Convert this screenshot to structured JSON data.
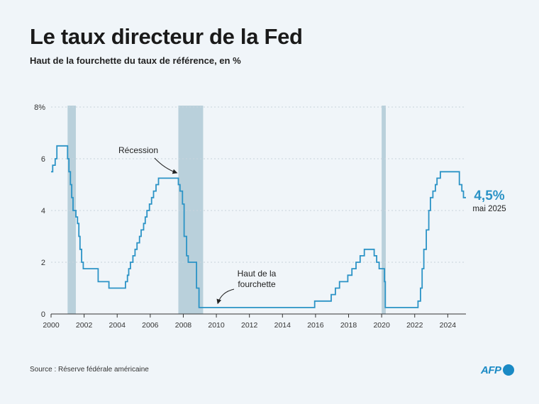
{
  "header": {
    "title": "Le taux directeur de la Fed",
    "subtitle": "Haut de la fourchette du taux de référence, en %"
  },
  "footer": {
    "source": "Source : Réserve fédérale américaine",
    "logo_text": "AFP"
  },
  "colors": {
    "line": "#2b93c6",
    "recession": "#b9d0db",
    "grid": "#c9d3dc",
    "accent": "#2b93c6"
  },
  "chart_data": {
    "type": "line",
    "title": "Le taux directeur de la Fed",
    "subtitle": "Haut de la fourchette du taux de référence, en %",
    "xlabel": "",
    "ylabel": "",
    "xlim": [
      2000,
      2025.1
    ],
    "ylim": [
      0,
      8
    ],
    "grid": true,
    "y_ticks": [
      {
        "value": 0,
        "label": "0"
      },
      {
        "value": 2,
        "label": "2"
      },
      {
        "value": 4,
        "label": "4"
      },
      {
        "value": 6,
        "label": "6"
      },
      {
        "value": 8,
        "label": "8%"
      }
    ],
    "x_ticks": [
      {
        "value": 2000,
        "label": "2000"
      },
      {
        "value": 2002,
        "label": "2002"
      },
      {
        "value": 2004,
        "label": "2004"
      },
      {
        "value": 2006,
        "label": "2006"
      },
      {
        "value": 2008,
        "label": "2008"
      },
      {
        "value": 2010,
        "label": "2010"
      },
      {
        "value": 2012,
        "label": "2012"
      },
      {
        "value": 2014,
        "label": "2014"
      },
      {
        "value": 2016,
        "label": "2016"
      },
      {
        "value": 2018,
        "label": "2018"
      },
      {
        "value": 2020,
        "label": "2020"
      },
      {
        "value": 2022,
        "label": "2022"
      },
      {
        "value": 2024,
        "label": "2024"
      }
    ],
    "recessions": [
      {
        "start": 2001.0,
        "end": 2001.5
      },
      {
        "start": 2007.7,
        "end": 2009.2
      },
      {
        "start": 2020.0,
        "end": 2020.25
      }
    ],
    "series": [
      {
        "step": true,
        "points": [
          [
            2000.0,
            5.5
          ],
          [
            2000.1,
            5.75
          ],
          [
            2000.25,
            6.0
          ],
          [
            2000.35,
            6.5
          ],
          [
            2001.0,
            6.0
          ],
          [
            2001.08,
            5.5
          ],
          [
            2001.17,
            5.0
          ],
          [
            2001.25,
            4.5
          ],
          [
            2001.33,
            4.0
          ],
          [
            2001.5,
            3.75
          ],
          [
            2001.6,
            3.5
          ],
          [
            2001.68,
            3.0
          ],
          [
            2001.75,
            2.5
          ],
          [
            2001.85,
            2.0
          ],
          [
            2001.95,
            1.75
          ],
          [
            2002.85,
            1.25
          ],
          [
            2003.5,
            1.0
          ],
          [
            2004.5,
            1.25
          ],
          [
            2004.62,
            1.5
          ],
          [
            2004.7,
            1.75
          ],
          [
            2004.8,
            2.0
          ],
          [
            2004.95,
            2.25
          ],
          [
            2005.08,
            2.5
          ],
          [
            2005.2,
            2.75
          ],
          [
            2005.35,
            3.0
          ],
          [
            2005.45,
            3.25
          ],
          [
            2005.6,
            3.5
          ],
          [
            2005.7,
            3.75
          ],
          [
            2005.8,
            4.0
          ],
          [
            2005.95,
            4.25
          ],
          [
            2006.08,
            4.5
          ],
          [
            2006.2,
            4.75
          ],
          [
            2006.35,
            5.0
          ],
          [
            2006.5,
            5.25
          ],
          [
            2007.7,
            5.0
          ],
          [
            2007.8,
            4.75
          ],
          [
            2007.95,
            4.25
          ],
          [
            2008.05,
            3.0
          ],
          [
            2008.2,
            2.25
          ],
          [
            2008.3,
            2.0
          ],
          [
            2008.8,
            1.0
          ],
          [
            2008.95,
            0.25
          ],
          [
            2015.95,
            0.5
          ],
          [
            2016.95,
            0.75
          ],
          [
            2017.2,
            1.0
          ],
          [
            2017.45,
            1.25
          ],
          [
            2017.95,
            1.5
          ],
          [
            2018.2,
            1.75
          ],
          [
            2018.45,
            2.0
          ],
          [
            2018.7,
            2.25
          ],
          [
            2018.95,
            2.5
          ],
          [
            2019.55,
            2.25
          ],
          [
            2019.7,
            2.0
          ],
          [
            2019.85,
            1.75
          ],
          [
            2020.17,
            1.25
          ],
          [
            2020.22,
            0.25
          ],
          [
            2022.2,
            0.5
          ],
          [
            2022.35,
            1.0
          ],
          [
            2022.45,
            1.75
          ],
          [
            2022.55,
            2.5
          ],
          [
            2022.7,
            3.25
          ],
          [
            2022.85,
            4.0
          ],
          [
            2022.95,
            4.5
          ],
          [
            2023.1,
            4.75
          ],
          [
            2023.25,
            5.0
          ],
          [
            2023.35,
            5.25
          ],
          [
            2023.55,
            5.5
          ],
          [
            2024.7,
            5.0
          ],
          [
            2024.85,
            4.75
          ],
          [
            2024.95,
            4.5
          ],
          [
            2025.1,
            4.5
          ]
        ]
      }
    ],
    "annotations": [
      {
        "text": "Récession",
        "points_to": [
          2007.7,
          5.4
        ]
      },
      {
        "text": "Haut de la fourchette",
        "lines": [
          "Haut de la",
          "fourchette"
        ],
        "points_to": [
          2010.0,
          0.35
        ]
      }
    ],
    "end_label": {
      "value": "4,5%",
      "date": "mai 2025"
    }
  }
}
